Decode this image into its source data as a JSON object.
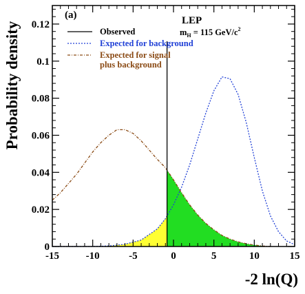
{
  "chart_data": {
    "type": "line",
    "panel_label": "(a)",
    "experiment": "LEP",
    "mass_label": {
      "prefix": "m",
      "subscript": "H",
      "middle": " = 115 GeV/c",
      "superscript": "2"
    },
    "xlabel": "-2 ln(Q)",
    "ylabel": "Probability density",
    "xlim": [
      -15,
      15
    ],
    "ylim": [
      0,
      0.13
    ],
    "x_ticks": [
      -15,
      -10,
      -5,
      0,
      5,
      10,
      15
    ],
    "x_tick_labels": [
      "-15",
      "-10",
      "-5",
      "0",
      "5",
      "10",
      "15"
    ],
    "y_ticks": [
      0,
      0.02,
      0.04,
      0.06,
      0.08,
      0.1,
      0.12
    ],
    "y_tick_labels": [
      "0",
      "0.02",
      "0.04",
      "0.06",
      "0.08",
      "0.1",
      "0.12"
    ],
    "observed": {
      "label": "Observed",
      "x": -0.8,
      "color": "#000000"
    },
    "series": [
      {
        "name": "Expected for background",
        "color": "#1f3fd6",
        "style": "dashed",
        "x": [
          -15,
          -12,
          -10,
          -8,
          -6,
          -4,
          -2,
          -1,
          0,
          1,
          2,
          3,
          4,
          5,
          6,
          7,
          8,
          9,
          10,
          11,
          12,
          13,
          14,
          15
        ],
        "y": [
          0,
          0,
          0,
          0.0003,
          0.0012,
          0.0035,
          0.0095,
          0.015,
          0.0225,
          0.032,
          0.044,
          0.058,
          0.072,
          0.084,
          0.0915,
          0.0905,
          0.082,
          0.067,
          0.048,
          0.03,
          0.0165,
          0.008,
          0.003,
          0.001
        ]
      },
      {
        "name": "Expected for signal\nplus background",
        "color": "#8a4a14",
        "style": "dashdot",
        "x": [
          -15,
          -14,
          -13,
          -12,
          -11,
          -10,
          -9,
          -8,
          -7,
          -6,
          -5,
          -4,
          -3,
          -2,
          -1,
          0,
          1,
          2,
          3,
          4,
          5,
          6,
          7,
          8,
          9,
          10,
          11,
          12
        ],
        "y": [
          0.025,
          0.029,
          0.034,
          0.039,
          0.045,
          0.051,
          0.056,
          0.06,
          0.063,
          0.063,
          0.061,
          0.057,
          0.052,
          0.047,
          0.0425,
          0.036,
          0.029,
          0.0225,
          0.017,
          0.0125,
          0.009,
          0.006,
          0.004,
          0.0025,
          0.0015,
          0.0008,
          0.0003,
          0
        ]
      }
    ],
    "shaded_regions": [
      {
        "fill": "#ffff33",
        "follows": "Expected for background",
        "from": -15,
        "to": -0.8
      },
      {
        "fill": "#22dd22",
        "follows": "Expected for signal\nplus background",
        "from": -0.8,
        "to": 15
      }
    ],
    "legend_position": "top-left"
  }
}
